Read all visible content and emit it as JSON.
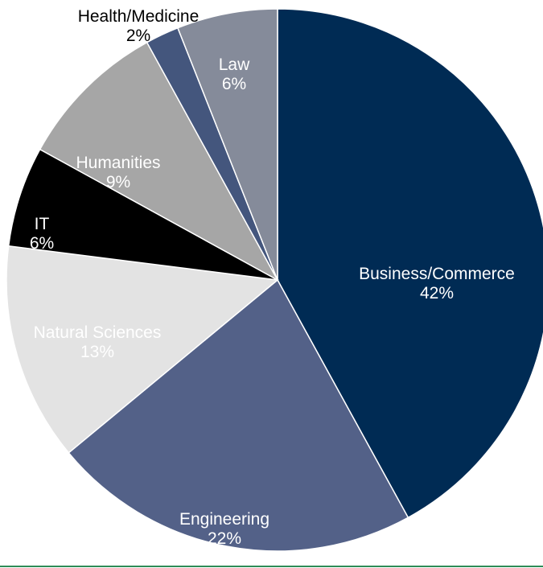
{
  "chart_data": {
    "type": "pie",
    "title": "",
    "start_angle_deg": 0,
    "direction": "clockwise",
    "legend": "none",
    "slices": [
      {
        "name": "Business/Commerce",
        "value": 42,
        "label": "Business/Commerce",
        "pct": "42%",
        "color": "#002b54",
        "label_color": "#ffffff"
      },
      {
        "name": "Engineering",
        "value": 22,
        "label": "Engineering",
        "pct": "22%",
        "color": "#536188",
        "label_color": "#ffffff"
      },
      {
        "name": "Natural Sciences",
        "value": 13,
        "label": "Natural Sciences",
        "pct": "13%",
        "color": "#e3e3e3",
        "label_color": "#ffffff"
      },
      {
        "name": "IT",
        "value": 6,
        "label": "IT",
        "pct": "6%",
        "color": "#000000",
        "label_color": "#ffffff"
      },
      {
        "name": "Humanities",
        "value": 9,
        "label": "Humanities",
        "pct": "9%",
        "color": "#a6a6a6",
        "label_color": "#ffffff"
      },
      {
        "name": "Health/Medicine",
        "value": 2,
        "label": "Health/Medicine",
        "pct": "2%",
        "color": "#44567d",
        "label_color": "#000000"
      },
      {
        "name": "Law",
        "value": 6,
        "label": "Law",
        "pct": "6%",
        "color": "#858b9a",
        "label_color": "#ffffff"
      }
    ]
  }
}
